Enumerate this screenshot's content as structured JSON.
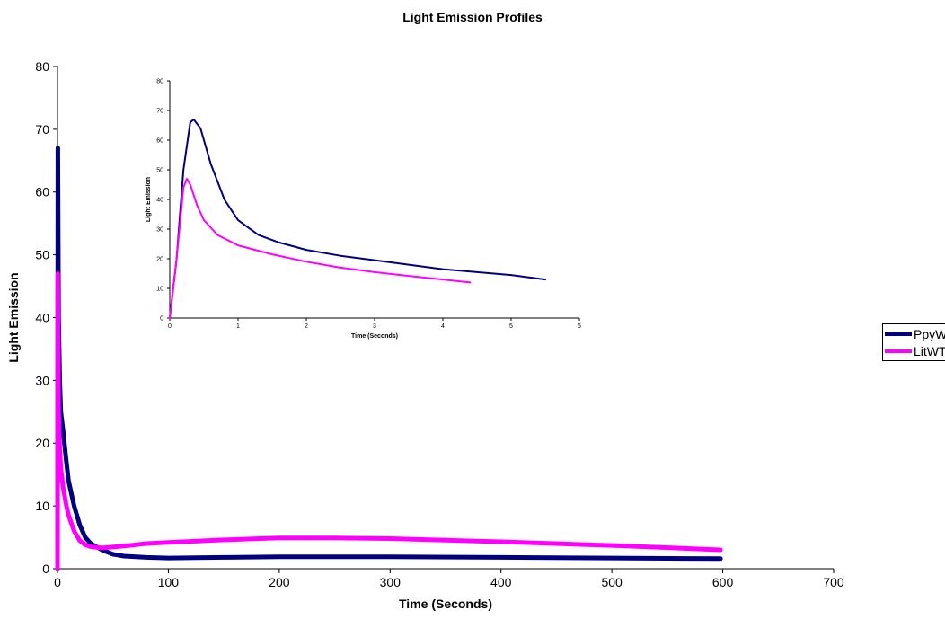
{
  "chart_data": [
    {
      "type": "line",
      "title": "Light Emission Profiles",
      "xlabel": "Time (Seconds)",
      "ylabel": "Light Emission",
      "xlim": [
        0,
        700
      ],
      "ylim": [
        0,
        80
      ],
      "x_ticks": [
        "0",
        "100",
        "200",
        "300",
        "400",
        "500",
        "600",
        "700"
      ],
      "y_ticks": [
        "0",
        "10",
        "20",
        "30",
        "40",
        "50",
        "60",
        "70",
        "80"
      ],
      "grid": false,
      "legend_position": "right",
      "series": [
        {
          "name": "PpyWT",
          "color": "#000080",
          "x": [
            0,
            0.3,
            1,
            2,
            3,
            5,
            8,
            10,
            15,
            20,
            25,
            30,
            40,
            50,
            60,
            80,
            100,
            150,
            200,
            300,
            400,
            500,
            598
          ],
          "y": [
            0,
            67,
            40,
            30,
            25,
            22,
            17,
            14,
            10,
            7,
            5,
            4,
            3,
            2.3,
            2,
            1.8,
            1.7,
            1.8,
            1.9,
            1.9,
            1.8,
            1.7,
            1.6
          ]
        },
        {
          "name": "LitWT",
          "color": "#FF00FF",
          "x": [
            0,
            0.25,
            1,
            2,
            3,
            5,
            8,
            10,
            15,
            20,
            25,
            30,
            40,
            60,
            80,
            100,
            150,
            200,
            250,
            300,
            400,
            500,
            598
          ],
          "y": [
            0,
            47,
            25,
            19,
            16,
            13,
            10,
            8.5,
            6,
            4.5,
            3.8,
            3.5,
            3.3,
            3.6,
            4,
            4.2,
            4.6,
            4.9,
            4.9,
            4.8,
            4.3,
            3.7,
            3
          ]
        }
      ]
    },
    {
      "type": "line",
      "title": "",
      "xlabel": "Time (Seconds)",
      "ylabel": "Light Emission",
      "xlim": [
        0,
        6
      ],
      "ylim": [
        0,
        80
      ],
      "x_ticks": [
        "0",
        "1",
        "2",
        "3",
        "4",
        "5",
        "6"
      ],
      "y_ticks": [
        "0",
        "10",
        "20",
        "30",
        "40",
        "50",
        "60",
        "70",
        "80"
      ],
      "grid": false,
      "series": [
        {
          "color": "#000080",
          "x": [
            0,
            0.1,
            0.2,
            0.3,
            0.35,
            0.45,
            0.6,
            0.8,
            1,
            1.3,
            1.6,
            2,
            2.5,
            3,
            3.5,
            4,
            4.5,
            5,
            5.5
          ],
          "y": [
            0,
            20,
            50,
            66,
            67,
            64,
            52,
            40,
            33,
            28,
            25.5,
            23,
            21,
            19.5,
            18,
            16.5,
            15.5,
            14.5,
            13
          ]
        },
        {
          "color": "#FF00FF",
          "x": [
            0,
            0.1,
            0.2,
            0.25,
            0.3,
            0.4,
            0.5,
            0.7,
            1,
            1.5,
            2,
            2.5,
            3,
            3.5,
            4,
            4.4
          ],
          "y": [
            0,
            20,
            44,
            47,
            45,
            38,
            33,
            28,
            24.5,
            21.5,
            19,
            17,
            15.5,
            14.2,
            13,
            12
          ]
        }
      ]
    }
  ]
}
